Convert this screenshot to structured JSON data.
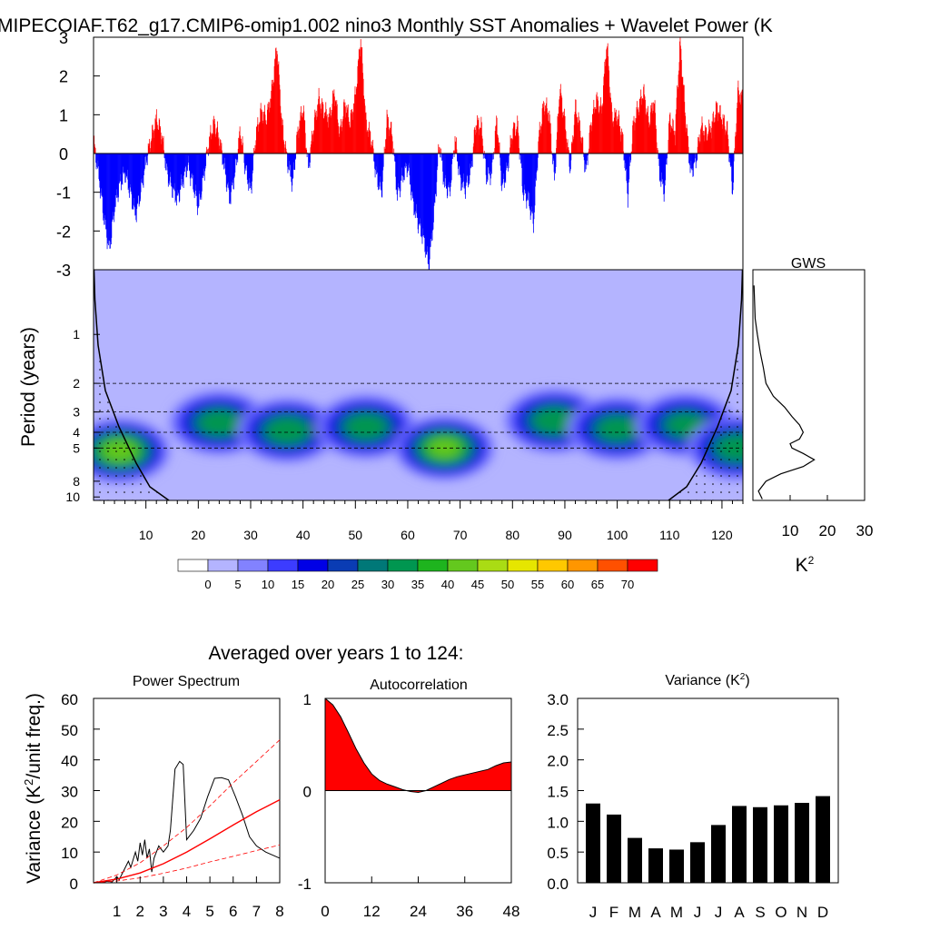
{
  "figure": {
    "title": "MIPECOIAF.T62_g17.CMIP6-omip1.002 nino3 Monthly SST Anomalies + Wavelet Power (K",
    "averaged_title": "Averaged over years 1 to 124:",
    "colors": {
      "positive": "#ff0000",
      "negative": "#0000ff",
      "axis": "#000000",
      "background": "#ffffff"
    }
  },
  "chart_data": [
    {
      "id": "sst-anomaly",
      "type": "bar",
      "x_domain": [
        0,
        124
      ],
      "ylim": [
        -3,
        3
      ],
      "yticks": [
        -3,
        -2,
        -1,
        0,
        1,
        2,
        3
      ],
      "ytick_labels": [
        "-3",
        "-2",
        "-1",
        "0",
        "1",
        "2",
        "3"
      ],
      "series_points": [
        [
          0,
          0.3
        ],
        [
          1,
          -0.6
        ],
        [
          2,
          -1.7
        ],
        [
          3,
          -2.5
        ],
        [
          4,
          -1.4
        ],
        [
          5,
          -0.8
        ],
        [
          6,
          -0.5
        ],
        [
          7,
          -1.0
        ],
        [
          8,
          -1.6
        ],
        [
          9,
          -1.0
        ],
        [
          10,
          -0.2
        ],
        [
          11,
          0.4
        ],
        [
          12,
          0.9
        ],
        [
          13,
          0.5
        ],
        [
          14,
          -0.5
        ],
        [
          15,
          -0.9
        ],
        [
          16,
          -1.2
        ],
        [
          17,
          -0.7
        ],
        [
          18,
          -0.3
        ],
        [
          19,
          -0.8
        ],
        [
          20,
          -1.4
        ],
        [
          21,
          -0.6
        ],
        [
          22,
          0.3
        ],
        [
          23,
          0.8
        ],
        [
          24,
          0.4
        ],
        [
          25,
          -0.4
        ],
        [
          26,
          -1.2
        ],
        [
          27,
          -0.5
        ],
        [
          28,
          0.6
        ],
        [
          29,
          -0.4
        ],
        [
          30,
          -1.0
        ],
        [
          31,
          0.5
        ],
        [
          32,
          1.1
        ],
        [
          33,
          0.9
        ],
        [
          34,
          1.6
        ],
        [
          35,
          2.8
        ],
        [
          36,
          0.7
        ],
        [
          37,
          -0.2
        ],
        [
          38,
          -0.8
        ],
        [
          39,
          0.6
        ],
        [
          40,
          1.2
        ],
        [
          41,
          -0.4
        ],
        [
          42,
          0.7
        ],
        [
          43,
          1.4
        ],
        [
          44,
          1.1
        ],
        [
          45,
          0.9
        ],
        [
          46,
          1.6
        ],
        [
          47,
          0.5
        ],
        [
          48,
          1.3
        ],
        [
          49,
          0.8
        ],
        [
          50,
          1.5
        ],
        [
          51,
          3.0
        ],
        [
          52,
          0.8
        ],
        [
          53,
          0.4
        ],
        [
          54,
          -0.6
        ],
        [
          55,
          -1.0
        ],
        [
          56,
          0.9
        ],
        [
          57,
          0.5
        ],
        [
          58,
          -1.1
        ],
        [
          59,
          -0.6
        ],
        [
          60,
          -0.3
        ],
        [
          61,
          -1.3
        ],
        [
          62,
          -1.8
        ],
        [
          63,
          -2.2
        ],
        [
          64,
          -2.9
        ],
        [
          65,
          -1.6
        ],
        [
          66,
          0.3
        ],
        [
          67,
          -0.8
        ],
        [
          68,
          -1.0
        ],
        [
          69,
          0.4
        ],
        [
          70,
          -0.7
        ],
        [
          71,
          -0.9
        ],
        [
          72,
          -0.5
        ],
        [
          73,
          0.8
        ],
        [
          74,
          0.7
        ],
        [
          75,
          -0.6
        ],
        [
          76,
          -0.5
        ],
        [
          77,
          0.9
        ],
        [
          78,
          -0.9
        ],
        [
          79,
          -0.4
        ],
        [
          80,
          0.6
        ],
        [
          81,
          0.7
        ],
        [
          82,
          -1.0
        ],
        [
          83,
          -1.2
        ],
        [
          84,
          -1.8
        ],
        [
          85,
          0.4
        ],
        [
          86,
          1.3
        ],
        [
          87,
          1.0
        ],
        [
          88,
          -0.7
        ],
        [
          89,
          1.7
        ],
        [
          90,
          0.8
        ],
        [
          91,
          -0.4
        ],
        [
          92,
          1.2
        ],
        [
          93,
          0.6
        ],
        [
          94,
          -0.5
        ],
        [
          95,
          0.8
        ],
        [
          96,
          1.4
        ],
        [
          97,
          1.1
        ],
        [
          98,
          2.9
        ],
        [
          99,
          0.9
        ],
        [
          100,
          1.0
        ],
        [
          101,
          0.4
        ],
        [
          102,
          -1.1
        ],
        [
          103,
          0.7
        ],
        [
          104,
          1.2
        ],
        [
          105,
          1.6
        ],
        [
          106,
          0.8
        ],
        [
          107,
          1.4
        ],
        [
          108,
          -0.5
        ],
        [
          109,
          -1.0
        ],
        [
          110,
          0.9
        ],
        [
          111,
          0.5
        ],
        [
          112,
          2.9
        ],
        [
          113,
          1.0
        ],
        [
          114,
          -0.5
        ],
        [
          115,
          -0.2
        ],
        [
          116,
          0.7
        ],
        [
          117,
          0.5
        ],
        [
          118,
          0.7
        ],
        [
          119,
          1.2
        ],
        [
          120,
          0.9
        ],
        [
          121,
          0.6
        ],
        [
          122,
          -1.0
        ],
        [
          123,
          1.6
        ],
        [
          124,
          1.4
        ]
      ]
    },
    {
      "id": "wavelet-power",
      "type": "heatmap",
      "ylabel": "Period (years)",
      "x_domain": [
        0,
        124
      ],
      "xticks": [
        10,
        20,
        30,
        40,
        50,
        60,
        70,
        80,
        90,
        100,
        110,
        120
      ],
      "xtick_labels": [
        "10",
        "20",
        "30",
        "40",
        "50",
        "60",
        "70",
        "80",
        "90",
        "100",
        "110",
        "120"
      ],
      "y_domain": [
        0.4,
        10.5
      ],
      "y_scale": "log",
      "yticks": [
        1,
        2,
        3,
        4,
        5,
        8,
        10
      ],
      "ytick_labels": [
        "1",
        "2",
        "3",
        "4",
        "5",
        "8",
        "10"
      ],
      "reference_periods": [
        2,
        3,
        4,
        5
      ],
      "contour_levels": [
        0,
        5,
        10,
        15,
        20,
        25,
        30,
        35,
        40,
        45,
        50,
        55,
        60,
        65,
        70
      ],
      "colorbar_labels": [
        "0",
        "5",
        "10",
        "15",
        "20",
        "25",
        "30",
        "35",
        "40",
        "45",
        "50",
        "55",
        "60",
        "65",
        "70"
      ],
      "colorbar_colors": [
        "#ffffff",
        "#b4b4ff",
        "#8282ff",
        "#3c3cff",
        "#0000e6",
        "#0a3cb4",
        "#007878",
        "#009650",
        "#1eb41e",
        "#64c81e",
        "#aadc14",
        "#e6e600",
        "#ffc800",
        "#ff9600",
        "#ff5000",
        "#ff0000"
      ],
      "power_peaks": [
        {
          "x": 5,
          "period": 5.2,
          "power": 42
        },
        {
          "x": 24,
          "period": 3.5,
          "power": 32
        },
        {
          "x": 37,
          "period": 3.9,
          "power": 33
        },
        {
          "x": 52,
          "period": 3.7,
          "power": 32
        },
        {
          "x": 67,
          "period": 5.0,
          "power": 40
        },
        {
          "x": 88,
          "period": 3.4,
          "power": 33
        },
        {
          "x": 100,
          "period": 3.8,
          "power": 31
        },
        {
          "x": 113,
          "period": 3.6,
          "power": 30
        },
        {
          "x": 123,
          "period": 5.0,
          "power": 33
        }
      ]
    },
    {
      "id": "gws",
      "type": "line",
      "title": "GWS",
      "xlabel": "K",
      "xlabel_superscript": "2",
      "xlim": [
        0,
        30
      ],
      "xticks": [
        10,
        20,
        30
      ],
      "xtick_labels": [
        "10",
        "20",
        "30"
      ],
      "y_scale": "log",
      "points": [
        [
          0.3,
          0.5
        ],
        [
          0.6,
          0.8
        ],
        [
          1.2,
          1.0
        ],
        [
          2.0,
          1.3
        ],
        [
          2.8,
          1.6
        ],
        [
          3.5,
          2.0
        ],
        [
          5.5,
          2.4
        ],
        [
          8.5,
          2.8
        ],
        [
          10.5,
          3.2
        ],
        [
          12.5,
          3.6
        ],
        [
          13.5,
          4.0
        ],
        [
          12.5,
          4.4
        ],
        [
          10.0,
          4.7
        ],
        [
          10.5,
          5.0
        ],
        [
          13.5,
          5.4
        ],
        [
          16.5,
          5.9
        ],
        [
          13.5,
          6.5
        ],
        [
          7.5,
          7.2
        ],
        [
          3.5,
          8.0
        ],
        [
          1.5,
          9.2
        ],
        [
          2.5,
          10.3
        ]
      ]
    },
    {
      "id": "power-spectrum",
      "type": "line",
      "title": "Power Spectrum",
      "ylabel": "Variance (K",
      "ylabel_superscript": "2",
      "ylabel_suffix": "/unit freq.)",
      "xlim": [
        0,
        8
      ],
      "ylim": [
        0,
        60
      ],
      "xticks": [
        1,
        2,
        3,
        4,
        5,
        6,
        7,
        8
      ],
      "xtick_labels": [
        "1",
        "2",
        "3",
        "4",
        "5",
        "6",
        "7",
        "8"
      ],
      "yticks": [
        0,
        10,
        20,
        30,
        40,
        50,
        60
      ],
      "ytick_labels": [
        "0",
        "10",
        "20",
        "30",
        "40",
        "50",
        "60"
      ],
      "series": [
        {
          "style": "solid-black",
          "points": [
            [
              0,
              0
            ],
            [
              0.3,
              0
            ],
            [
              0.6,
              0.5
            ],
            [
              0.8,
              0.3
            ],
            [
              1.0,
              2.0
            ],
            [
              1.1,
              1.0
            ],
            [
              1.3,
              4.0
            ],
            [
              1.5,
              7.0
            ],
            [
              1.6,
              5.0
            ],
            [
              1.8,
              10.0
            ],
            [
              1.9,
              7.0
            ],
            [
              2.0,
              13.0
            ],
            [
              2.1,
              9.0
            ],
            [
              2.2,
              14.0
            ],
            [
              2.3,
              8.0
            ],
            [
              2.4,
              11.0
            ],
            [
              2.5,
              3.5
            ],
            [
              2.6,
              8.0
            ],
            [
              2.7,
              10.0
            ],
            [
              2.8,
              12.0
            ],
            [
              2.9,
              11.0
            ],
            [
              3.0,
              10.0
            ],
            [
              3.2,
              12.0
            ],
            [
              3.3,
              17.0
            ],
            [
              3.5,
              37.0
            ],
            [
              3.7,
              39.5
            ],
            [
              3.85,
              38.5
            ],
            [
              4.0,
              14.0
            ],
            [
              4.3,
              17.0
            ],
            [
              4.6,
              21.0
            ],
            [
              4.9,
              28.0
            ],
            [
              5.2,
              34.0
            ],
            [
              5.5,
              34.2
            ],
            [
              5.8,
              33.5
            ],
            [
              6.1,
              28.0
            ],
            [
              6.4,
              22.0
            ],
            [
              6.7,
              15.0
            ],
            [
              7.0,
              12.0
            ],
            [
              7.4,
              10.0
            ],
            [
              8.0,
              8.0
            ]
          ]
        },
        {
          "style": "solid-red",
          "points": [
            [
              0,
              0
            ],
            [
              1,
              1.2
            ],
            [
              2,
              3.2
            ],
            [
              3,
              6.2
            ],
            [
              4,
              10
            ],
            [
              5,
              14.3
            ],
            [
              6,
              18.8
            ],
            [
              7,
              23.1
            ],
            [
              8,
              27
            ]
          ]
        },
        {
          "style": "dashed-red-upper",
          "points": [
            [
              0,
              0
            ],
            [
              1,
              2.5
            ],
            [
              2,
              6.5
            ],
            [
              3,
              12
            ],
            [
              4,
              18
            ],
            [
              5,
              25
            ],
            [
              6,
              32.5
            ],
            [
              7,
              39.5
            ],
            [
              8,
              46.5
            ]
          ]
        },
        {
          "style": "dashed-red-lower",
          "points": [
            [
              0,
              0
            ],
            [
              1,
              0.6
            ],
            [
              2,
              1.6
            ],
            [
              3,
              3.1
            ],
            [
              4,
              4.8
            ],
            [
              5,
              6.8
            ],
            [
              6,
              8.6
            ],
            [
              7,
              10.5
            ],
            [
              8,
              12.3
            ]
          ]
        }
      ]
    },
    {
      "id": "autocorrelation",
      "type": "area",
      "title": "Autocorrelation",
      "xlim": [
        0,
        48
      ],
      "ylim": [
        -1,
        1
      ],
      "xticks": [
        0,
        12,
        24,
        36,
        48
      ],
      "xtick_labels": [
        "0",
        "12",
        "24",
        "36",
        "48"
      ],
      "yticks": [
        -1,
        0,
        1
      ],
      "ytick_labels": [
        "-1",
        "0",
        "1"
      ],
      "points": [
        [
          0,
          1.0
        ],
        [
          2,
          0.93
        ],
        [
          4,
          0.8
        ],
        [
          6,
          0.63
        ],
        [
          8,
          0.45
        ],
        [
          10,
          0.3
        ],
        [
          12,
          0.18
        ],
        [
          14,
          0.11
        ],
        [
          16,
          0.07
        ],
        [
          18,
          0.04
        ],
        [
          20,
          0.01
        ],
        [
          22,
          -0.01
        ],
        [
          24,
          -0.02
        ],
        [
          26,
          0.0
        ],
        [
          28,
          0.04
        ],
        [
          30,
          0.08
        ],
        [
          32,
          0.12
        ],
        [
          34,
          0.15
        ],
        [
          36,
          0.17
        ],
        [
          38,
          0.19
        ],
        [
          40,
          0.21
        ],
        [
          42,
          0.23
        ],
        [
          44,
          0.27
        ],
        [
          46,
          0.3
        ],
        [
          48,
          0.31
        ]
      ]
    },
    {
      "id": "monthly-variance",
      "type": "bar",
      "title": "Variance (K",
      "title_superscript": "2",
      "title_suffix": ")",
      "ylim": [
        0,
        3.0
      ],
      "yticks": [
        0,
        0.5,
        1.0,
        1.5,
        2.0,
        2.5,
        3.0
      ],
      "ytick_labels": [
        "0.0",
        "0.5",
        "1.0",
        "1.5",
        "2.0",
        "2.5",
        "3.0"
      ],
      "categories": [
        "J",
        "F",
        "M",
        "A",
        "M",
        "J",
        "J",
        "A",
        "S",
        "O",
        "N",
        "D"
      ],
      "values": [
        1.29,
        1.11,
        0.73,
        0.56,
        0.54,
        0.66,
        0.94,
        1.25,
        1.23,
        1.26,
        1.3,
        1.41
      ]
    }
  ]
}
